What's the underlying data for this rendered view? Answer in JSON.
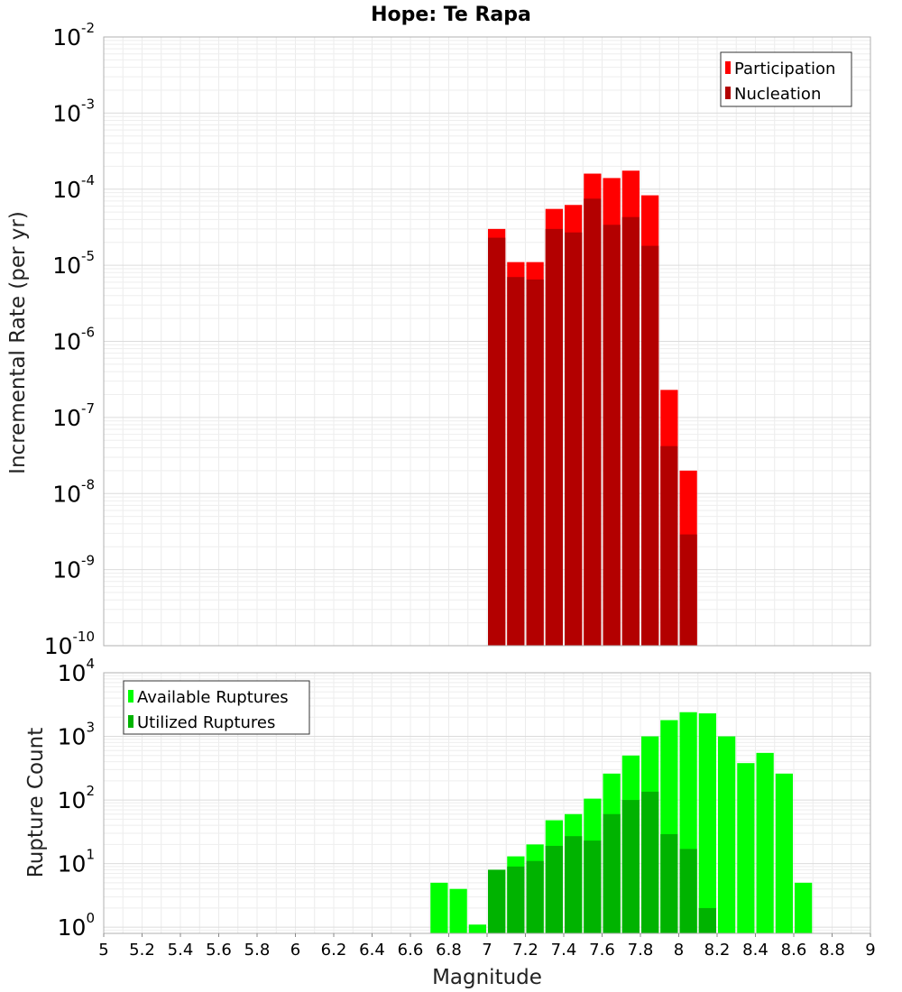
{
  "chart_data": [
    {
      "type": "bar",
      "title": "Hope: Te Rapa",
      "xlabel": "",
      "ylabel": "Incremental Rate (per yr)",
      "xlim": [
        5,
        9
      ],
      "ylim": [
        1e-10,
        0.01
      ],
      "y_scale": "log",
      "y_ticks": [
        {
          "base": "10",
          "exp": "-2"
        },
        {
          "base": "10",
          "exp": "-3"
        },
        {
          "base": "10",
          "exp": "-4"
        },
        {
          "base": "10",
          "exp": "-5"
        },
        {
          "base": "10",
          "exp": "-6"
        },
        {
          "base": "10",
          "exp": "-7"
        },
        {
          "base": "10",
          "exp": "-8"
        },
        {
          "base": "10",
          "exp": "-9"
        },
        {
          "base": "10",
          "exp": "-10"
        }
      ],
      "grid": true,
      "legend_position": "top-right",
      "bin_width": 0.1,
      "series": [
        {
          "name": "Participation",
          "color": "#ff0000",
          "x": [
            7.05,
            7.15,
            7.25,
            7.35,
            7.45,
            7.55,
            7.65,
            7.75,
            7.85,
            7.95,
            8.05
          ],
          "values": [
            3e-05,
            1.1e-05,
            1.1e-05,
            5.5e-05,
            6.2e-05,
            0.00016,
            0.00014,
            0.000175,
            8.3e-05,
            2.3e-07,
            2e-08
          ]
        },
        {
          "name": "Nucleation",
          "color": "#b30000",
          "x": [
            7.05,
            7.15,
            7.25,
            7.35,
            7.45,
            7.55,
            7.65,
            7.75,
            7.85,
            7.95,
            8.05
          ],
          "values": [
            2.3e-05,
            7e-06,
            6.5e-06,
            3e-05,
            2.7e-05,
            7.5e-05,
            3.4e-05,
            4.3e-05,
            1.8e-05,
            4.2e-08,
            2.9e-09
          ]
        }
      ]
    },
    {
      "type": "bar",
      "title": "",
      "xlabel": "Magnitude",
      "ylabel": "Rupture Count",
      "xlim": [
        5,
        9
      ],
      "ylim": [
        0.8,
        10000.0
      ],
      "y_scale": "log",
      "y_ticks": [
        {
          "base": "10",
          "exp": "4"
        },
        {
          "base": "10",
          "exp": "3"
        },
        {
          "base": "10",
          "exp": "2"
        },
        {
          "base": "10",
          "exp": "1"
        },
        {
          "base": "10",
          "exp": "0"
        }
      ],
      "x_ticks": [
        "5",
        "5.2",
        "5.4",
        "5.6",
        "5.8",
        "6",
        "6.2",
        "6.4",
        "6.6",
        "6.8",
        "7",
        "7.2",
        "7.4",
        "7.6",
        "7.8",
        "8",
        "8.2",
        "8.4",
        "8.6",
        "8.8",
        "9"
      ],
      "grid": true,
      "legend_position": "top-left",
      "bin_width": 0.1,
      "series": [
        {
          "name": "Available Ruptures",
          "color": "#00ff00",
          "x": [
            6.75,
            6.85,
            6.95,
            7.05,
            7.15,
            7.25,
            7.35,
            7.45,
            7.55,
            7.65,
            7.75,
            7.85,
            7.95,
            8.05,
            8.15,
            8.25,
            8.35,
            8.45,
            8.55,
            8.65
          ],
          "values": [
            5,
            4,
            1.1,
            8,
            13,
            20,
            48,
            60,
            105,
            260,
            500,
            1000,
            1800,
            2400,
            2300,
            1000,
            380,
            550,
            260,
            5
          ]
        },
        {
          "name": "Utilized Ruptures",
          "color": "#00b300",
          "x": [
            7.05,
            7.15,
            7.25,
            7.35,
            7.45,
            7.55,
            7.65,
            7.75,
            7.85,
            7.95,
            8.05,
            8.15
          ],
          "values": [
            8,
            9,
            11,
            19,
            27,
            23,
            60,
            100,
            135,
            29,
            17,
            2
          ]
        }
      ]
    }
  ]
}
